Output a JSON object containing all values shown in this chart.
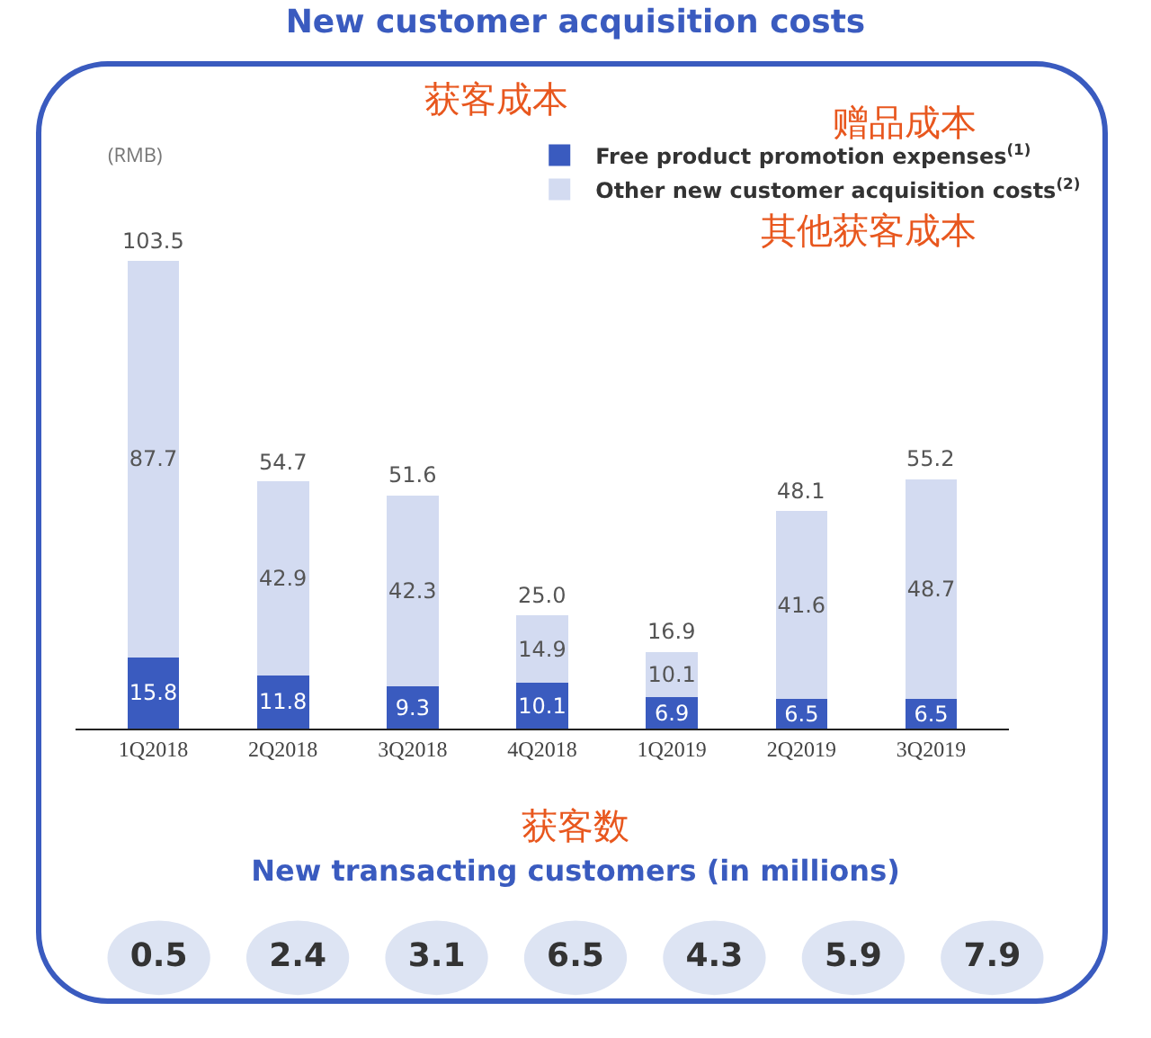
{
  "chart_data": [
    {
      "type": "bar",
      "title": "New customer acquisition costs",
      "subtitle": "获客成本",
      "ylabel": "(RMB)",
      "stacked": true,
      "data_labels": true,
      "legend": "top right",
      "categories": [
        "1Q2018",
        "2Q2018",
        "3Q2018",
        "4Q2018",
        "1Q2019",
        "2Q2019",
        "3Q2019"
      ],
      "series": [
        {
          "name": "Free product promotion expenses$^{(1)}$",
          "color": "#3a5bbf",
          "values": [
            15.8,
            11.8,
            9.3,
            10.1,
            6.9,
            6.5,
            6.5
          ]
        },
        {
          "name": "Other new customer acquisition costs$^{(2)}$",
          "color": "#d3dbf1",
          "values": [
            87.7,
            42.9,
            42.3,
            14.9,
            10.1,
            41.6,
            48.7
          ]
        }
      ],
      "totals": [
        "103.5",
        "54.7",
        "51.6",
        "25.0",
        "16.9",
        "48.1",
        "55.2"
      ],
      "annotations": [
        "赠品成本",
        "其他获客成本"
      ]
    },
    {
      "type": "other",
      "title": "New transacting customers (in millions)",
      "subtitle": "获客数",
      "color": "#dde4f3",
      "data_labels": true,
      "values": [
        0.5,
        2.4,
        3.1,
        6.5,
        4.3,
        5.9,
        7.9
      ]
    }
  ]
}
